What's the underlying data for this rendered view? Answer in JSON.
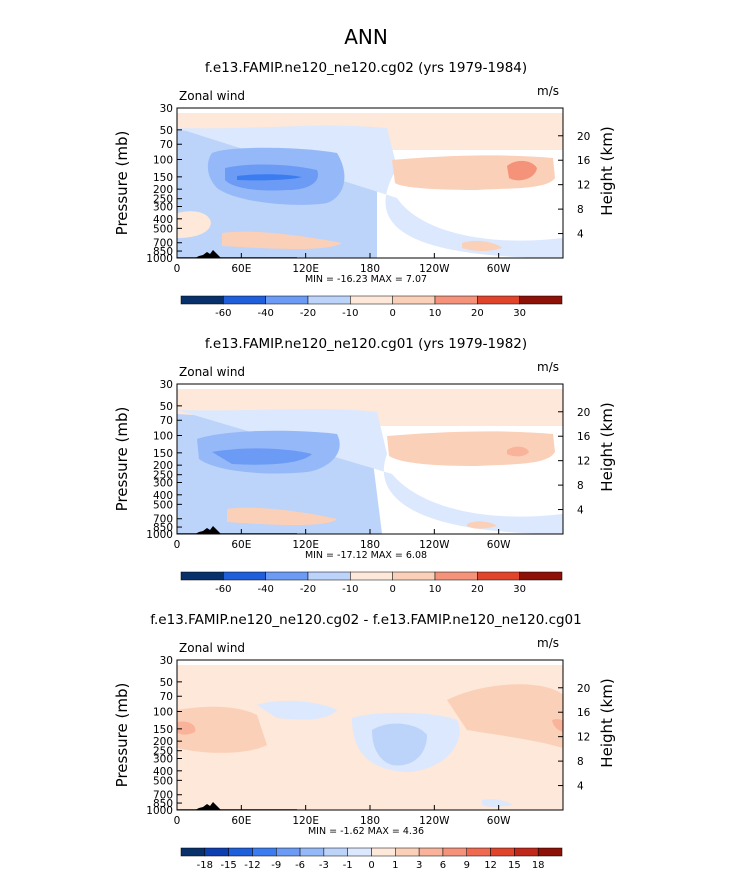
{
  "page_title": "ANN",
  "colors": {
    "neg": [
      "#08306b",
      "#0e3fb0",
      "#1f5fdc",
      "#3b7df0",
      "#6b9bf5",
      "#95b8f8",
      "#bcd3fa",
      "#dbe8fd"
    ],
    "pos": [
      "#fde8da",
      "#fbd0b8",
      "#f8b39a",
      "#f5927a",
      "#ef6a4f",
      "#e0452c",
      "#c0281a",
      "#8e1108"
    ]
  },
  "chart_data": [
    {
      "type": "heatmap",
      "title": "f.e13.FAMIP.ne120_ne120.cg02 (yrs 1979-1984)",
      "variable_label": "Zonal wind",
      "units": "m/s",
      "ylabel_left": "Pressure (mb)",
      "ylabel_right": "Height (km)",
      "x_ticks": [
        "0",
        "60E",
        "120E",
        "180",
        "120W",
        "60W"
      ],
      "y_ticks_left": [
        "30",
        "50",
        "70",
        "100",
        "150",
        "200",
        "250",
        "300",
        "400",
        "500",
        "700",
        "850",
        "1000"
      ],
      "y_ticks_right": [
        "20",
        "16",
        "12",
        "8",
        "4"
      ],
      "stats": "MIN = -16.23   MAX =   7.07",
      "colorbar_labels": [
        "-60",
        "-40",
        "-20",
        "-10",
        "0",
        "10",
        "20",
        "30"
      ],
      "min": -16.23,
      "max": 7.07
    },
    {
      "type": "heatmap",
      "title": "f.e13.FAMIP.ne120_ne120.cg01 (yrs 1979-1982)",
      "variable_label": "Zonal wind",
      "units": "m/s",
      "ylabel_left": "Pressure (mb)",
      "ylabel_right": "Height (km)",
      "x_ticks": [
        "0",
        "60E",
        "120E",
        "180",
        "120W",
        "60W"
      ],
      "y_ticks_left": [
        "30",
        "50",
        "70",
        "100",
        "150",
        "200",
        "250",
        "300",
        "400",
        "500",
        "700",
        "850",
        "1000"
      ],
      "y_ticks_right": [
        "20",
        "16",
        "12",
        "8",
        "4"
      ],
      "stats": "MIN = -17.12   MAX =   6.08",
      "colorbar_labels": [
        "-60",
        "-40",
        "-20",
        "-10",
        "0",
        "10",
        "20",
        "30"
      ],
      "min": -17.12,
      "max": 6.08
    },
    {
      "type": "heatmap",
      "title": "f.e13.FAMIP.ne120_ne120.cg02 - f.e13.FAMIP.ne120_ne120.cg01",
      "variable_label": "Zonal wind",
      "units": "m/s",
      "ylabel_left": "Pressure (mb)",
      "ylabel_right": "Height (km)",
      "x_ticks": [
        "0",
        "60E",
        "120E",
        "180",
        "120W",
        "60W"
      ],
      "y_ticks_left": [
        "30",
        "50",
        "70",
        "100",
        "150",
        "200",
        "250",
        "300",
        "400",
        "500",
        "700",
        "850",
        "1000"
      ],
      "y_ticks_right": [
        "20",
        "16",
        "12",
        "8",
        "4"
      ],
      "stats": "MIN =  -1.62   MAX =   4.36",
      "colorbar_labels": [
        "-18",
        "-15",
        "-12",
        "-9",
        "-6",
        "-3",
        "-1",
        "0",
        "1",
        "3",
        "6",
        "9",
        "12",
        "15",
        "18"
      ],
      "min": -1.62,
      "max": 4.36
    }
  ]
}
